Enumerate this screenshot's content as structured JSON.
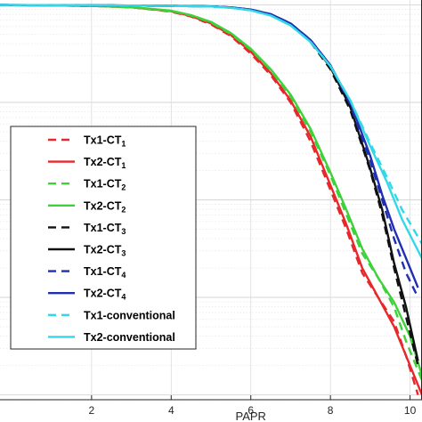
{
  "chart_data": {
    "type": "line",
    "xlabel": "PAPR",
    "ylabel": "",
    "xlim": [
      -0.3,
      10.3
    ],
    "ylim": [
      -4.05,
      0.05
    ],
    "yscale": "log",
    "x_ticks": [
      2,
      4,
      6,
      8,
      10
    ],
    "x_tick_labels": [
      "2",
      "4",
      "6",
      "8",
      "10"
    ],
    "grid": true,
    "legend_position": "left",
    "series": [
      {
        "name": "Tx1-CT",
        "subscript": "1",
        "color": "#e8272a",
        "dash": true,
        "x": [
          -0.3,
          2,
          3,
          4,
          4.5,
          5,
          5.5,
          6,
          6.5,
          7,
          7.5,
          8,
          8.4,
          8.8,
          9.2,
          9.6,
          9.9,
          10.2
        ],
        "y": [
          -0.002,
          -0.01,
          -0.025,
          -0.07,
          -0.12,
          -0.2,
          -0.32,
          -0.5,
          -0.72,
          -1.0,
          -1.4,
          -1.9,
          -2.3,
          -2.75,
          -3.0,
          -3.25,
          -3.6,
          -4.0
        ]
      },
      {
        "name": "Tx2-CT",
        "subscript": "1",
        "color": "#e8272a",
        "dash": false,
        "x": [
          -0.3,
          2,
          3,
          4,
          4.5,
          5,
          5.5,
          6,
          6.5,
          7,
          7.5,
          8,
          8.4,
          8.8,
          9.2,
          9.6,
          10.0,
          10.3
        ],
        "y": [
          -0.002,
          -0.01,
          -0.025,
          -0.065,
          -0.115,
          -0.19,
          -0.31,
          -0.48,
          -0.7,
          -0.98,
          -1.35,
          -1.85,
          -2.25,
          -2.7,
          -3.0,
          -3.3,
          -3.7,
          -4.0
        ]
      },
      {
        "name": "Tx1-CT",
        "subscript": "2",
        "color": "#3fd13a",
        "dash": true,
        "x": [
          -0.3,
          2,
          3,
          4,
          4.5,
          5,
          5.5,
          6,
          6.5,
          7,
          7.5,
          8,
          8.4,
          8.8,
          9.2,
          9.6,
          9.9,
          10.3
        ],
        "y": [
          -0.002,
          -0.01,
          -0.024,
          -0.063,
          -0.11,
          -0.18,
          -0.3,
          -0.46,
          -0.67,
          -0.94,
          -1.3,
          -1.75,
          -2.15,
          -2.55,
          -2.8,
          -3.1,
          -3.45,
          -3.85
        ]
      },
      {
        "name": "Tx2-CT",
        "subscript": "2",
        "color": "#3fd13a",
        "dash": false,
        "x": [
          -0.3,
          2,
          3,
          4,
          4.5,
          5,
          5.5,
          6,
          6.5,
          7,
          7.5,
          8,
          8.4,
          8.8,
          9.2,
          9.6,
          10.0,
          10.3
        ],
        "y": [
          -0.002,
          -0.01,
          -0.023,
          -0.06,
          -0.105,
          -0.175,
          -0.29,
          -0.45,
          -0.66,
          -0.92,
          -1.27,
          -1.72,
          -2.1,
          -2.5,
          -2.8,
          -3.05,
          -3.4,
          -3.8
        ]
      },
      {
        "name": "Tx1-CT",
        "subscript": "3",
        "color": "#111111",
        "dash": true,
        "x": [
          -0.3,
          2,
          4,
          5,
          5.5,
          6,
          6.5,
          7,
          7.5,
          8,
          8.5,
          9,
          9.3,
          9.6,
          9.9,
          10.2
        ],
        "y": [
          -0.001,
          -0.004,
          -0.01,
          -0.016,
          -0.026,
          -0.05,
          -0.1,
          -0.2,
          -0.38,
          -0.66,
          -1.08,
          -1.7,
          -2.15,
          -2.7,
          -3.2,
          -3.7
        ]
      },
      {
        "name": "Tx2-CT",
        "subscript": "3",
        "color": "#111111",
        "dash": false,
        "x": [
          -0.3,
          2,
          4,
          5,
          5.5,
          6,
          6.5,
          7,
          7.5,
          8,
          8.5,
          9,
          9.3,
          9.6,
          9.9,
          10.2
        ],
        "y": [
          -0.001,
          -0.004,
          -0.01,
          -0.016,
          -0.026,
          -0.05,
          -0.1,
          -0.2,
          -0.37,
          -0.64,
          -1.05,
          -1.68,
          -2.1,
          -2.65,
          -3.1,
          -3.65
        ]
      },
      {
        "name": "Tx1-CT",
        "subscript": "4",
        "color": "#1f2fb0",
        "dash": true,
        "x": [
          -0.3,
          2,
          4,
          5,
          5.5,
          6,
          6.5,
          7,
          7.5,
          8,
          8.5,
          9,
          9.3,
          9.6,
          9.9,
          10.2
        ],
        "y": [
          -0.001,
          -0.004,
          -0.01,
          -0.016,
          -0.026,
          -0.048,
          -0.095,
          -0.19,
          -0.36,
          -0.62,
          -1.02,
          -1.6,
          -2.0,
          -2.4,
          -2.75,
          -3.0
        ]
      },
      {
        "name": "Tx2-CT",
        "subscript": "4",
        "color": "#1f2fb0",
        "dash": false,
        "x": [
          -0.3,
          2,
          4,
          5,
          5.5,
          6,
          6.5,
          7,
          7.5,
          8,
          8.5,
          9,
          9.3,
          9.6,
          9.9,
          10.2
        ],
        "y": [
          -0.001,
          -0.004,
          -0.01,
          -0.016,
          -0.026,
          -0.048,
          -0.095,
          -0.19,
          -0.36,
          -0.62,
          -1.0,
          -1.55,
          -1.95,
          -2.3,
          -2.6,
          -2.9
        ]
      },
      {
        "name": "Tx1-conventional",
        "subscript": "",
        "color": "#33d8e8",
        "dash": true,
        "x": [
          -0.3,
          2,
          4,
          5,
          5.5,
          6,
          6.5,
          7,
          7.5,
          8,
          8.5,
          9,
          9.4,
          9.8,
          10.3
        ],
        "y": [
          -0.001,
          -0.004,
          -0.01,
          -0.017,
          -0.03,
          -0.056,
          -0.11,
          -0.21,
          -0.38,
          -0.63,
          -0.98,
          -1.42,
          -1.75,
          -2.1,
          -2.45
        ]
      },
      {
        "name": "Tx2-conventional",
        "subscript": "",
        "color": "#33d8e8",
        "dash": false,
        "x": [
          -0.3,
          2,
          4,
          5,
          5.5,
          6,
          6.5,
          7,
          7.5,
          8,
          8.5,
          9,
          9.4,
          9.8,
          10.3
        ],
        "y": [
          -0.001,
          -0.004,
          -0.01,
          -0.017,
          -0.03,
          -0.056,
          -0.11,
          -0.21,
          -0.38,
          -0.63,
          -0.98,
          -1.45,
          -1.8,
          -2.2,
          -2.6
        ]
      }
    ]
  }
}
